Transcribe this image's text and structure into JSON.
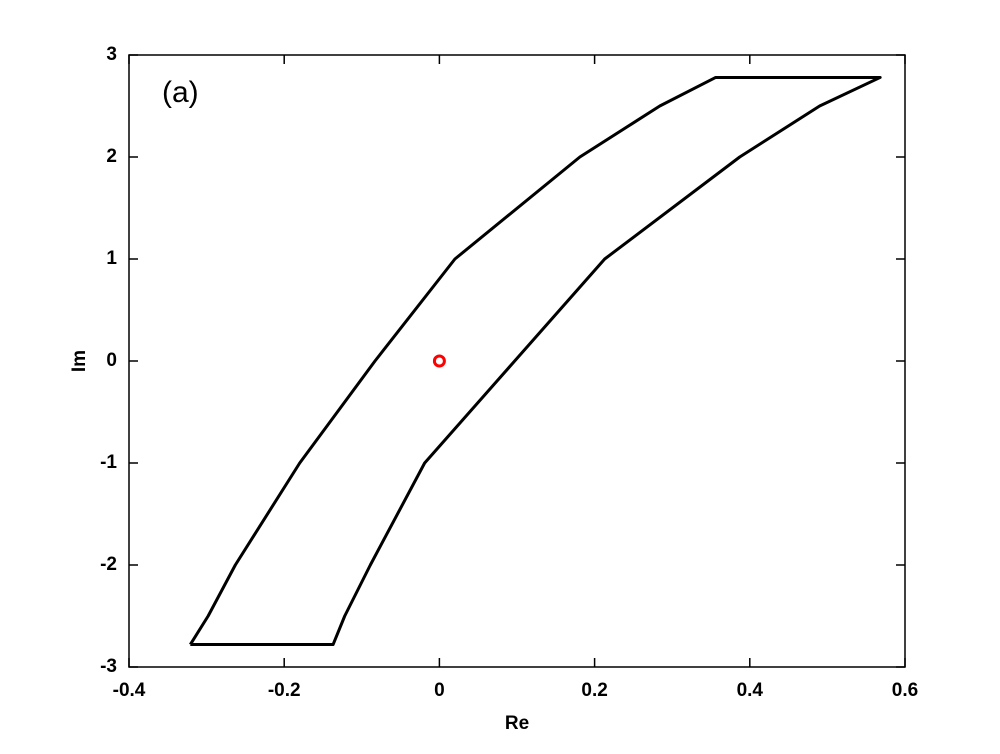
{
  "chart_data": {
    "type": "line",
    "annotation": "(a)",
    "xlabel": "Re",
    "ylabel": "Im",
    "xlim": [
      -0.4,
      0.6
    ],
    "xticks": [
      -0.4,
      -0.2,
      0,
      0.2,
      0.4,
      0.6
    ],
    "ylim": [
      -3,
      3
    ],
    "yticks": [
      -3,
      -2,
      -1,
      0,
      1,
      2,
      3
    ],
    "series": [
      {
        "color": "#000000",
        "x": [
          -0.321,
          -0.298,
          -0.263,
          -0.18,
          -0.083,
          0.02,
          0.181,
          0.284,
          0.356,
          0.568,
          0.49,
          0.387,
          0.213,
          0.097,
          -0.019,
          -0.089,
          -0.122,
          -0.137,
          -0.321
        ],
        "values": [
          -2.78,
          -2.5,
          -2,
          -1,
          0,
          1,
          2,
          2.5,
          2.78,
          2.78,
          2.5,
          2,
          1,
          0,
          -1,
          -2,
          -2.5,
          -2.78,
          -2.78
        ]
      },
      {
        "color": "#ff0000",
        "marker": "o",
        "x": [
          0
        ],
        "values": [
          0
        ]
      }
    ]
  }
}
